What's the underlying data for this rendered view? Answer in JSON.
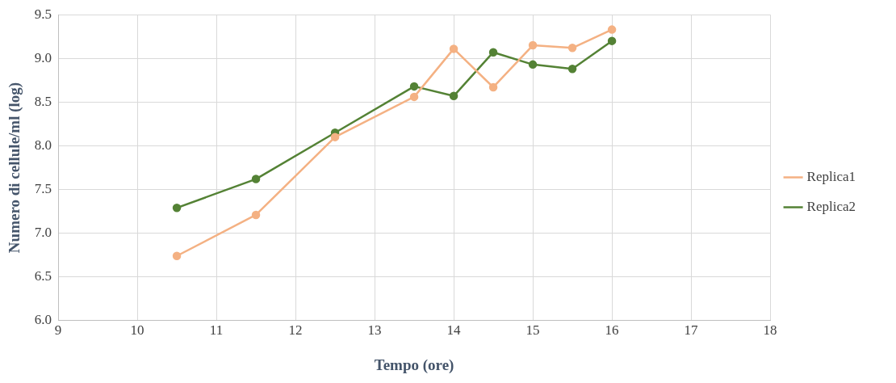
{
  "chart_data": {
    "type": "line",
    "xlabel": "Tempo (ore)",
    "ylabel": "Numero di cellule/ml (log)",
    "x": [
      10.5,
      11.5,
      12.5,
      13.5,
      14,
      14.5,
      15,
      15.5,
      16
    ],
    "series": [
      {
        "name": "Replica1",
        "color": "#f4b183",
        "values": [
          6.74,
          7.21,
          8.1,
          8.56,
          9.11,
          8.67,
          9.15,
          9.12,
          9.33
        ]
      },
      {
        "name": "Replica2",
        "color": "#548235",
        "values": [
          7.29,
          7.62,
          8.15,
          8.68,
          8.57,
          9.07,
          8.93,
          8.88,
          9.2
        ]
      }
    ],
    "xlim": [
      9,
      18
    ],
    "xticks": [
      9,
      10,
      11,
      12,
      13,
      14,
      15,
      16,
      17,
      18
    ],
    "ylim": [
      6,
      9.5
    ],
    "yticks": [
      {
        "value": 6,
        "label": "6.0"
      },
      {
        "value": 6.5,
        "label": "6.5"
      },
      {
        "value": 7,
        "label": "7.0"
      },
      {
        "value": 7.5,
        "label": "7.5"
      },
      {
        "value": 8,
        "label": "8.0"
      },
      {
        "value": 8.5,
        "label": "8.5"
      },
      {
        "value": 9,
        "label": "9.0"
      },
      {
        "value": 9.5,
        "label": "9.5"
      }
    ],
    "grid": true,
    "legend": "right",
    "marker": "circle",
    "line_style": "solid"
  }
}
